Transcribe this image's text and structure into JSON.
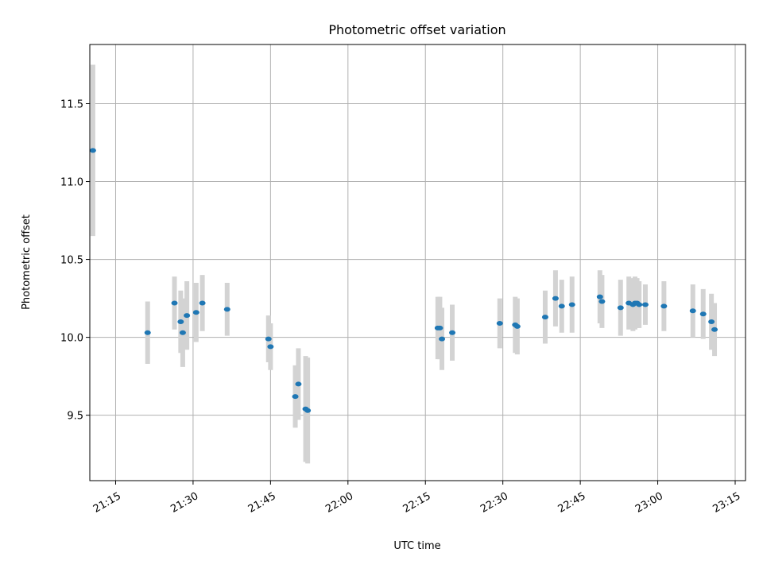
{
  "chart_data": {
    "type": "scatter",
    "title": "Photometric offset variation",
    "xlabel": "UTC time",
    "ylabel": "Photometric offset",
    "grid": true,
    "legend": "none",
    "x_axis_type": "time",
    "xlim": [
      "21:10",
      "23:17"
    ],
    "ylim": [
      9.08,
      11.88
    ],
    "xticks": [
      "21:15",
      "21:30",
      "21:45",
      "22:00",
      "22:15",
      "22:30",
      "22:45",
      "23:00",
      "23:15"
    ],
    "yticks": [
      9.5,
      10.0,
      10.5,
      11.0,
      11.5
    ],
    "tick_labels_y": [
      "9.5",
      "10.0",
      "10.5",
      "11.0",
      "11.5"
    ],
    "colors": {
      "marker": "#1f77b4",
      "errorbar": "#d3d3d3",
      "grid": "#b0b0b0"
    },
    "series": [
      {
        "x": [
          "21:10:36",
          "21:21:12",
          "21:26:24",
          "21:27:36",
          "21:28:00",
          "21:28:48",
          "21:30:36",
          "21:31:48",
          "21:36:36",
          "21:44:36",
          "21:45:00",
          "21:49:48",
          "21:50:24",
          "21:51:48",
          "21:52:12",
          "22:17:24",
          "22:17:48",
          "22:18:12",
          "22:20:12",
          "22:29:24",
          "22:32:24",
          "22:32:48",
          "22:38:12",
          "22:40:12",
          "22:41:24",
          "22:43:24",
          "22:48:48",
          "22:49:12",
          "22:52:48",
          "22:54:24",
          "22:55:12",
          "22:55:36",
          "22:56:00",
          "22:56:24",
          "22:57:36",
          "23:01:12",
          "23:06:48",
          "23:08:48",
          "23:10:24",
          "23:11:00"
        ],
        "y": [
          11.2,
          10.03,
          10.22,
          10.1,
          10.03,
          10.14,
          10.16,
          10.22,
          10.18,
          9.99,
          9.94,
          9.62,
          9.7,
          9.54,
          9.53,
          10.06,
          10.06,
          9.99,
          10.03,
          10.09,
          10.08,
          10.07,
          10.13,
          10.25,
          10.2,
          10.21,
          10.26,
          10.23,
          10.19,
          10.22,
          10.21,
          10.22,
          10.22,
          10.21,
          10.21,
          10.2,
          10.17,
          10.15,
          10.1,
          10.05
        ],
        "err": [
          0.55,
          0.2,
          0.17,
          0.2,
          0.22,
          0.22,
          0.19,
          0.18,
          0.17,
          0.15,
          0.15,
          0.2,
          0.23,
          0.34,
          0.34,
          0.2,
          0.2,
          0.2,
          0.18,
          0.16,
          0.18,
          0.18,
          0.17,
          0.18,
          0.17,
          0.18,
          0.17,
          0.17,
          0.18,
          0.17,
          0.17,
          0.17,
          0.16,
          0.15,
          0.13,
          0.16,
          0.17,
          0.16,
          0.18,
          0.17
        ]
      }
    ]
  }
}
